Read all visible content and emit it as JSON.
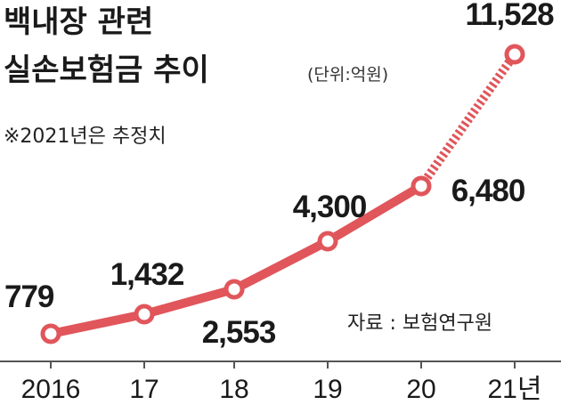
{
  "chart_data": {
    "type": "line",
    "title_line1": "백내장 관련",
    "title_line2": "실손보험금 추이",
    "unit": "(단위:억원)",
    "note": "※2021년은 추정치",
    "source": "자료 : 보험연구원",
    "categories": [
      "2016",
      "17",
      "18",
      "19",
      "20",
      "21년"
    ],
    "values": [
      779,
      1432,
      2553,
      4300,
      6480,
      11528
    ],
    "value_labels": [
      "779",
      "1,432",
      "2,553",
      "4,300",
      "6,480",
      "11,528"
    ],
    "estimated_from_index": 4,
    "line_color": "#e0565b",
    "axis_color": "#555555"
  }
}
